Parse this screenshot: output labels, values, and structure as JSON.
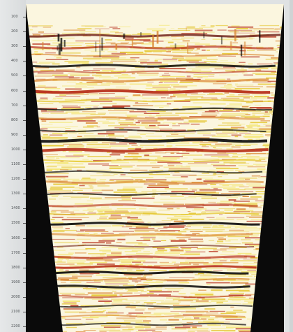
{
  "section": {
    "time_ticks": [
      "100",
      "200",
      "300",
      "400",
      "500",
      "600",
      "700",
      "800",
      "900",
      "1000",
      "1100",
      "1200",
      "1300",
      "1400",
      "1500",
      "1600",
      "1700",
      "1800",
      "1900",
      "2000",
      "2100",
      "2200"
    ],
    "colors": {
      "background": "#fbf6df",
      "faint_yellow": "#f3e46a",
      "yellow": "#e3c324",
      "orange": "#d9822a",
      "red": "#b8321c",
      "dark_red": "#6b1a12",
      "black": "#0a0a0a",
      "frame": "#dfe2e3"
    }
  }
}
